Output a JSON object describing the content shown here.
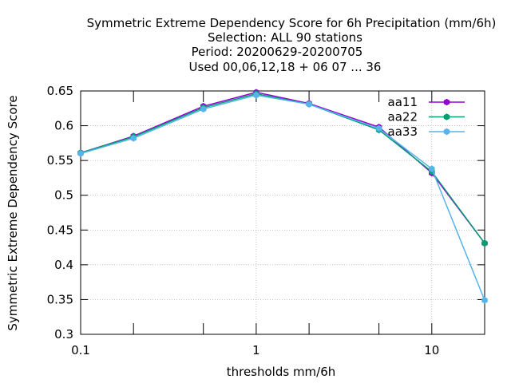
{
  "chart_data": {
    "type": "line",
    "title_lines": [
      "Symmetric Extreme Dependency Score  for 6h Precipitation (mm/6h)",
      "Selection: ALL     90 stations",
      "Period: 20200629-20200705",
      "Used  00,06,12,18 + 06 07 ... 36"
    ],
    "xlabel": "thresholds mm/6h",
    "ylabel": "Symmetric Extreme Dependency Score",
    "x_scale": "log",
    "xlim": [
      0.1,
      20
    ],
    "ylim": [
      0.3,
      0.65
    ],
    "x_ticks": [
      {
        "value": 0.1,
        "label": "0.1"
      },
      {
        "value": 1,
        "label": "1"
      },
      {
        "value": 10,
        "label": "10"
      }
    ],
    "x_minor_ticks": [
      0.2,
      0.5,
      2,
      5,
      20
    ],
    "y_ticks": [
      {
        "value": 0.3,
        "label": "0.3"
      },
      {
        "value": 0.35,
        "label": "0.35"
      },
      {
        "value": 0.4,
        "label": "0.4"
      },
      {
        "value": 0.45,
        "label": "0.45"
      },
      {
        "value": 0.5,
        "label": "0.5"
      },
      {
        "value": 0.55,
        "label": "0.55"
      },
      {
        "value": 0.6,
        "label": "0.6"
      },
      {
        "value": 0.65,
        "label": "0.65"
      }
    ],
    "grid": true,
    "legend_position": "top-right",
    "x": [
      0.1,
      0.2,
      0.5,
      1,
      2,
      5,
      10,
      20
    ],
    "series": [
      {
        "name": "aa11",
        "color": "#9400d3",
        "values": [
          0.561,
          0.585,
          0.628,
          0.648,
          0.632,
          0.598,
          0.532,
          0.431
        ]
      },
      {
        "name": "aa22",
        "color": "#009e73",
        "values": [
          0.561,
          0.584,
          0.626,
          0.646,
          0.631,
          0.594,
          0.534,
          0.431
        ]
      },
      {
        "name": "aa33",
        "color": "#56b4e9",
        "values": [
          0.56,
          0.582,
          0.624,
          0.644,
          0.631,
          0.596,
          0.538,
          0.349
        ]
      }
    ]
  }
}
